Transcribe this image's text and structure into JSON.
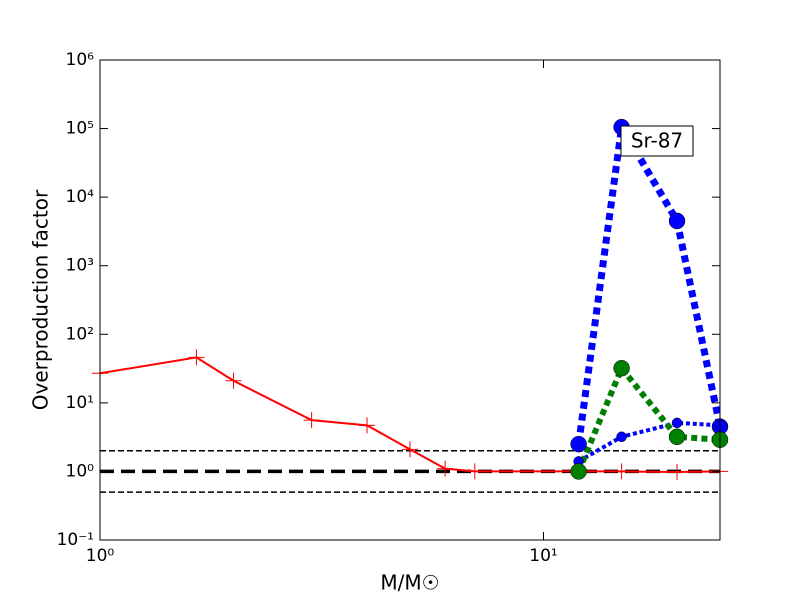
{
  "chart_data": {
    "type": "line",
    "xlabel": "M/M☉",
    "ylabel": "Overproduction factor",
    "xscale": "log",
    "yscale": "log",
    "xlim": [
      1,
      25
    ],
    "ylim": [
      0.1,
      1000000
    ],
    "xticks": [
      {
        "value": 1,
        "label": "10⁰"
      },
      {
        "value": 10,
        "label": "10¹"
      }
    ],
    "yticks": [
      {
        "value": 0.1,
        "label": "10⁻¹"
      },
      {
        "value": 1,
        "label": "10⁰"
      },
      {
        "value": 10,
        "label": "10¹"
      },
      {
        "value": 100,
        "label": "10²"
      },
      {
        "value": 1000,
        "label": "10³"
      },
      {
        "value": 10000,
        "label": "10⁴"
      },
      {
        "value": 100000,
        "label": "10⁵"
      },
      {
        "value": 1000000,
        "label": "10⁶"
      }
    ],
    "annotation": "Sr-87",
    "reference_lines": [
      {
        "value": 2,
        "width": 1.5
      },
      {
        "value": 1,
        "width": 3.5
      },
      {
        "value": 0.5,
        "width": 1.5
      }
    ],
    "series": [
      {
        "color": "#ff0000",
        "linestyle": "solid",
        "width": 2,
        "marker": "plus",
        "x": [
          1,
          1.65,
          2,
          3,
          4,
          5,
          6,
          7,
          12,
          15,
          20,
          25
        ],
        "values": [
          27,
          46,
          21,
          5.6,
          4.7,
          2.1,
          1.1,
          1.0,
          1.0,
          1.0,
          0.98,
          1.0
        ]
      },
      {
        "color": "#0000ff",
        "linestyle": "dotted",
        "width": 7,
        "marker": "circle",
        "marker_size": 8,
        "x": [
          12,
          15,
          20,
          25
        ],
        "values": [
          2.5,
          105000,
          4500,
          4.5
        ]
      },
      {
        "color": "#0000ff",
        "linestyle": "dotted",
        "width": 4,
        "marker": "circle",
        "marker_size": 5,
        "x": [
          12,
          15,
          20,
          25
        ],
        "values": [
          1.4,
          3.2,
          5.1,
          4.7
        ]
      },
      {
        "color": "#008000",
        "linestyle": "dotted",
        "width": 6,
        "marker": "circle",
        "marker_size": 8,
        "x": [
          12,
          15,
          20,
          25
        ],
        "values": [
          1.0,
          32,
          3.2,
          2.9
        ]
      }
    ]
  }
}
